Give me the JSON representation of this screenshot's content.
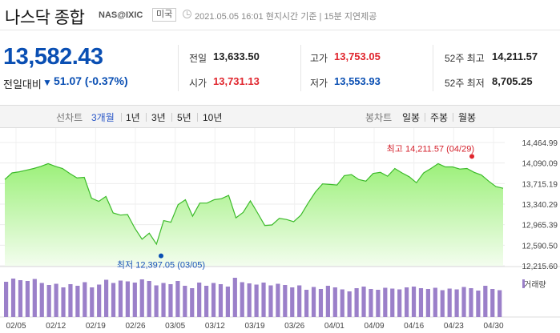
{
  "header": {
    "title": "나스닥 종합",
    "ticker": "NAS@IXIC",
    "market": "미국",
    "timestamp": "2021.05.05 16:01 현지시간 기준 | 15분 지연제공"
  },
  "price": {
    "current": "13,582.43",
    "change_label": "전일대비",
    "change_arrow": "▼",
    "change_value": "51.07 (-0.37%)"
  },
  "stats": {
    "prev_close": {
      "label": "전일",
      "value": "13,633.50"
    },
    "open": {
      "label": "시가",
      "value": "13,731.13"
    },
    "high": {
      "label": "고가",
      "value": "13,753.05"
    },
    "low": {
      "label": "저가",
      "value": "13,553.93"
    },
    "high52": {
      "label": "52주 최고",
      "value": "14,211.57"
    },
    "low52": {
      "label": "52주 최저",
      "value": "8,705.25"
    }
  },
  "tabs": {
    "line_caption": "선차트",
    "periods": [
      "3개월",
      "1년",
      "3년",
      "5년",
      "10년"
    ],
    "selected_period": "3개월",
    "candle_caption": "봉차트",
    "candles": [
      "일봉",
      "주봉",
      "월봉"
    ]
  },
  "colors": {
    "up": "#e0252d",
    "down": "#0a4fb3",
    "area_fill": "#aaf48a",
    "line": "#3dbb2b",
    "volume": "#9b80c9"
  },
  "chart_data": {
    "type": "area",
    "x_tick_labels": [
      "02/05",
      "02/12",
      "02/19",
      "02/26",
      "03/05",
      "03/12",
      "03/19",
      "03/26",
      "04/01",
      "04/09",
      "04/16",
      "04/23",
      "04/30"
    ],
    "y_tick_labels": [
      "14,464.99",
      "14,090.09",
      "13,715.19",
      "13,340.29",
      "12,965.39",
      "12,590.50",
      "12,215.60"
    ],
    "ylim": [
      12215.6,
      14464.99
    ],
    "values": [
      13790,
      13910,
      13930,
      13960,
      13990,
      14030,
      14080,
      14030,
      13990,
      13900,
      13820,
      13830,
      13450,
      13390,
      13480,
      13180,
      13140,
      13150,
      12900,
      12700,
      12810,
      12610,
      13040,
      13010,
      13330,
      13420,
      13120,
      13360,
      13360,
      13420,
      13440,
      13500,
      13090,
      13190,
      13400,
      13180,
      12950,
      12960,
      13080,
      13060,
      13020,
      13140,
      13360,
      13560,
      13710,
      13700,
      13690,
      13860,
      13880,
      13790,
      13760,
      13900,
      13920,
      13850,
      13990,
      13910,
      13840,
      13730,
      13910,
      13990,
      14080,
      14020,
      14020,
      13980,
      13990,
      13920,
      13870,
      13760,
      13660,
      13630
    ],
    "annotations": [
      {
        "label": "최고 14,211.57 (04/29)",
        "value": 14211.57
      },
      {
        "label": "최저 12,397.05 (03/05)",
        "value": 12397.05
      }
    ],
    "volume_legend": "거래량",
    "volume_relative": [
      0.88,
      0.96,
      0.92,
      0.9,
      0.95,
      0.85,
      0.8,
      0.83,
      0.74,
      0.82,
      0.78,
      0.87,
      0.74,
      0.81,
      0.93,
      0.85,
      0.91,
      0.89,
      0.86,
      0.94,
      0.9,
      0.79,
      0.85,
      0.82,
      0.9,
      0.78,
      0.72,
      0.86,
      0.78,
      0.85,
      0.82,
      0.76,
      0.98,
      0.87,
      0.84,
      0.81,
      0.86,
      0.79,
      0.83,
      0.8,
      0.74,
      0.79,
      0.68,
      0.75,
      0.7,
      0.78,
      0.74,
      0.69,
      0.64,
      0.72,
      0.76,
      0.7,
      0.68,
      0.73,
      0.71,
      0.69,
      0.74,
      0.76,
      0.72,
      0.7,
      0.73,
      0.67,
      0.71,
      0.69,
      0.75,
      0.72,
      0.66,
      0.78,
      0.7,
      0.67
    ]
  }
}
